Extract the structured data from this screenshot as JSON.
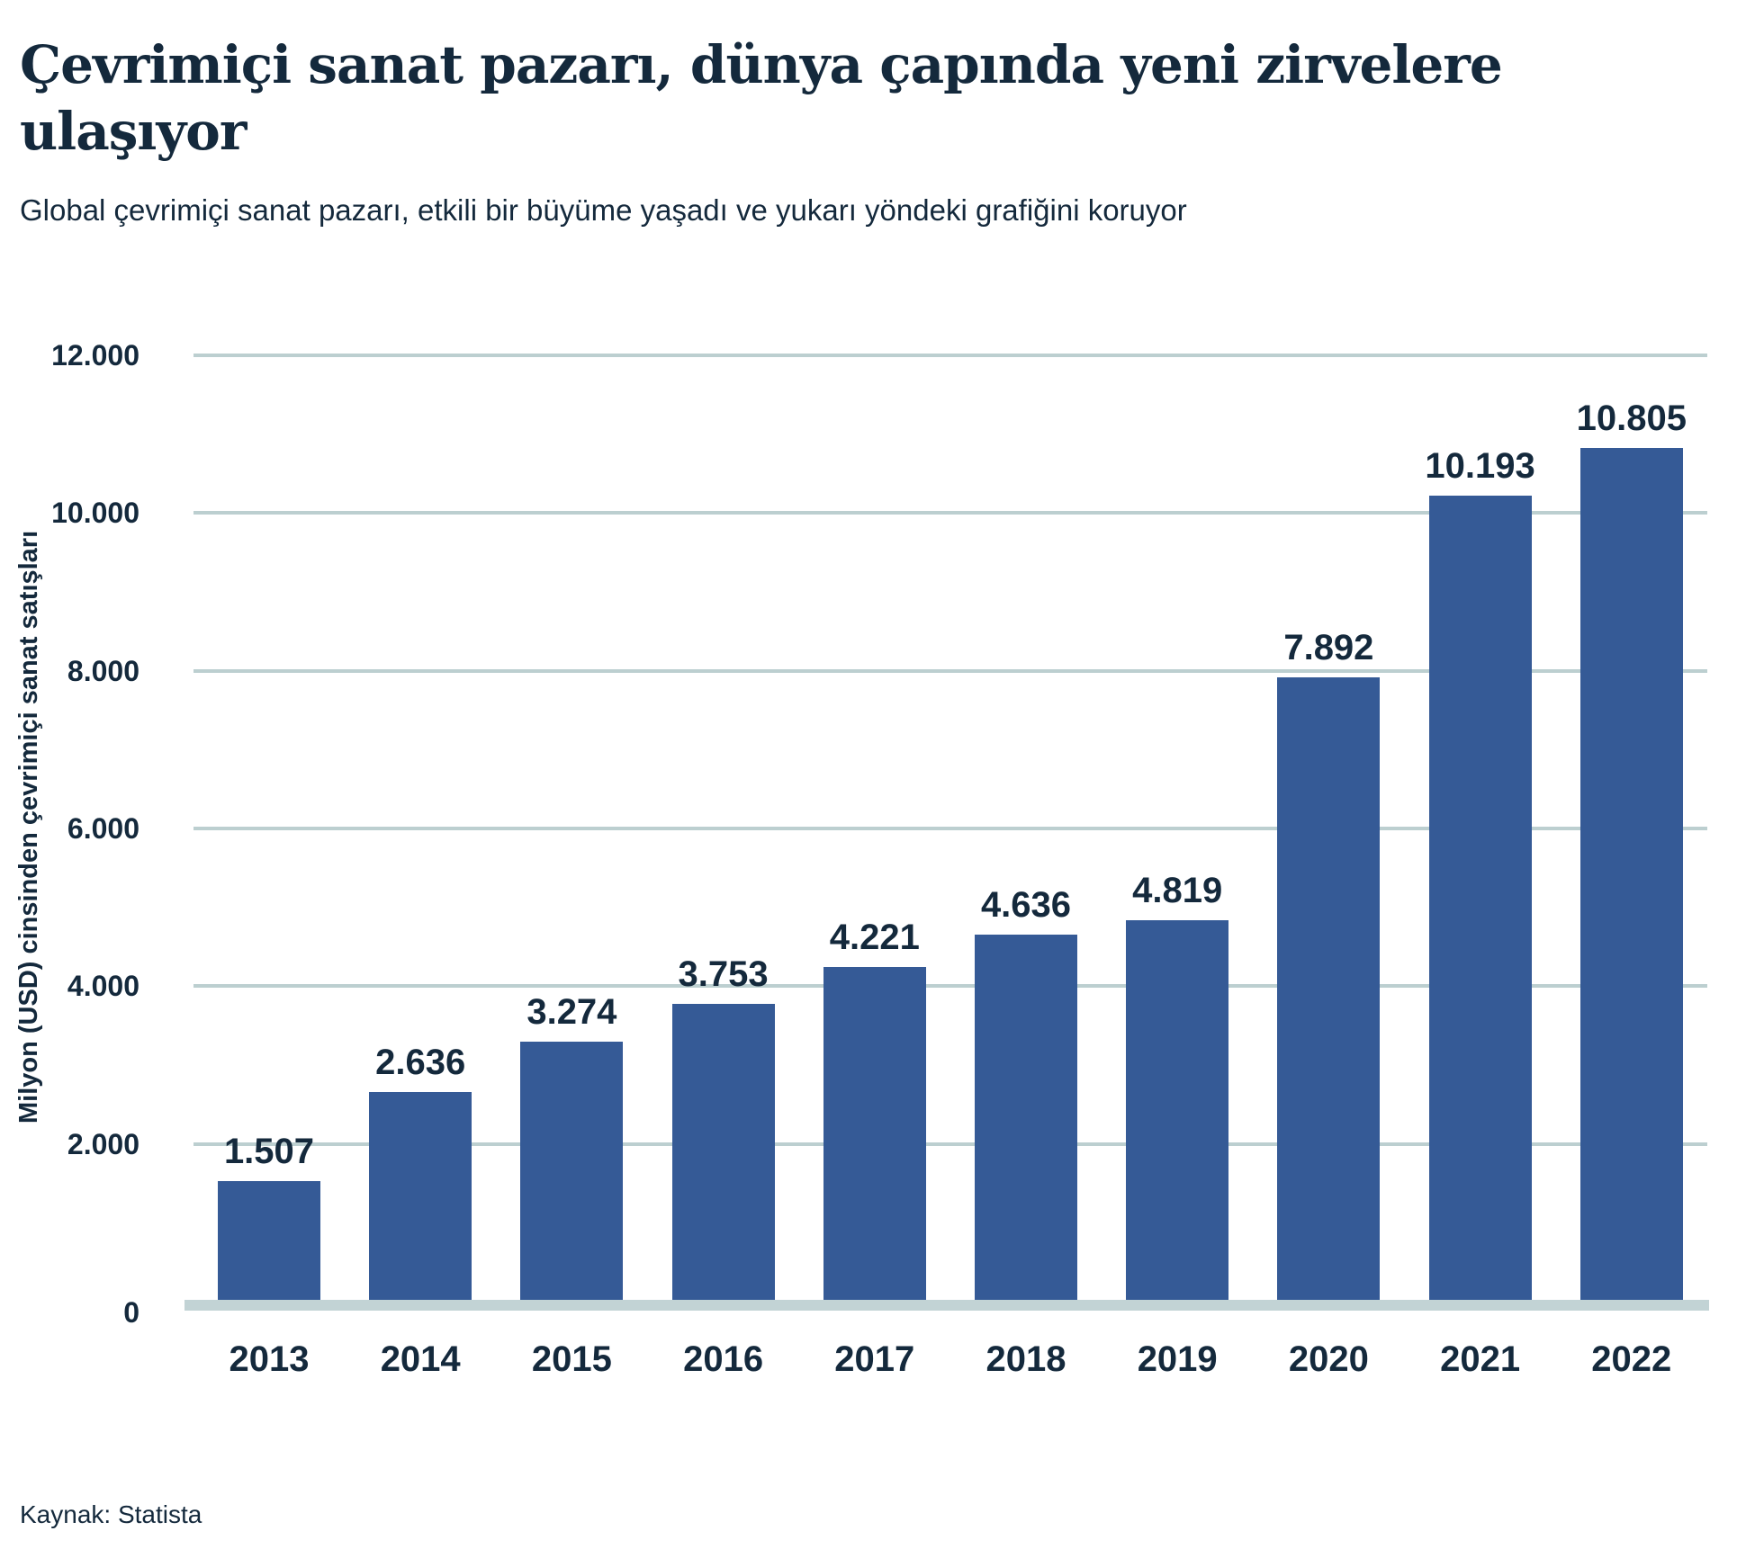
{
  "chart_data": {
    "type": "bar",
    "title": "Çevrimiçi sanat pazarı, dünya çapında yeni zirvelere ulaşıyor",
    "subtitle": "Global çevrimiçi sanat pazarı, etkili bir büyüme yaşadı ve yukarı yöndeki grafiğini koruyor",
    "categories": [
      "2013",
      "2014",
      "2015",
      "2016",
      "2017",
      "2018",
      "2019",
      "2020",
      "2021",
      "2022"
    ],
    "values": [
      1507,
      2636,
      3274,
      3753,
      4221,
      4636,
      4819,
      7892,
      10193,
      10805
    ],
    "value_labels": [
      "1.507",
      "2.636",
      "3.274",
      "3.753",
      "4.221",
      "4.636",
      "4.819",
      "7.892",
      "10.193",
      "10.805"
    ],
    "xlabel": "",
    "ylabel": "Milyon (USD) cinsinden çevrimiçi sanat satışları",
    "ylim": [
      0,
      12000
    ],
    "yticks": [
      {
        "value": 0,
        "label": "0"
      },
      {
        "value": 2000,
        "label": "2.000"
      },
      {
        "value": 4000,
        "label": "4.000"
      },
      {
        "value": 6000,
        "label": "6.000"
      },
      {
        "value": 8000,
        "label": "8.000"
      },
      {
        "value": 10000,
        "label": "10.000"
      },
      {
        "value": 12000,
        "label": "12.000"
      }
    ],
    "grid": true,
    "legend": "none",
    "source": "Kaynak: Statista",
    "colors": {
      "bar": "#355a96",
      "gridline": "#bccfd0",
      "baseline_band": "#c2d3d5",
      "text": "#14293c"
    }
  }
}
